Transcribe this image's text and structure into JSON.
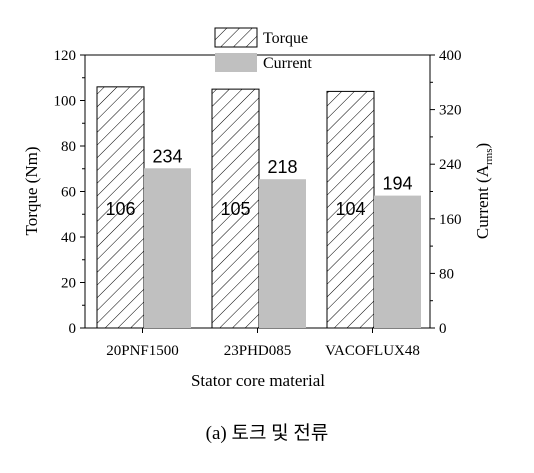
{
  "chart_data": {
    "type": "bar",
    "categories": [
      "20PNF1500",
      "23PHD085",
      "VACOFLUX48"
    ],
    "series": [
      {
        "name": "Torque",
        "axis": "left",
        "values": [
          106,
          105,
          104
        ],
        "labels": [
          "106",
          "105",
          "104"
        ],
        "pattern": "diagonal-hatch"
      },
      {
        "name": "Current",
        "axis": "right",
        "values": [
          234,
          218,
          194
        ],
        "labels": [
          "234",
          "218",
          "194"
        ],
        "color": "#c0c0c0"
      }
    ],
    "xlabel": "Stator core material",
    "ylabel_left": "Torque (Nm)",
    "ylabel_right_main": "Current (A",
    "ylabel_right_sub": "rms",
    "ylabel_right_end": ")",
    "ylim_left": [
      0,
      120
    ],
    "yticks_left": [
      "0",
      "20",
      "40",
      "60",
      "80",
      "100",
      "120"
    ],
    "ylim_right": [
      0,
      400
    ],
    "yticks_right": [
      "0",
      "80",
      "160",
      "240",
      "320",
      "400"
    ],
    "grid": false,
    "legend_position": "top-center"
  },
  "caption": "(a) 토크 및 전류"
}
